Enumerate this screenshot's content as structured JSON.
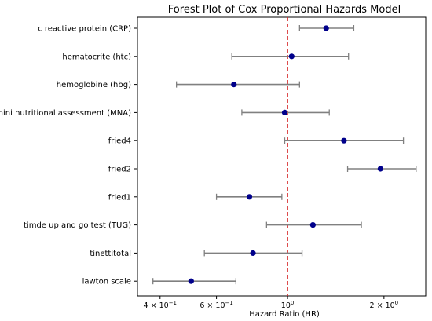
{
  "chart_data": {
    "type": "forest",
    "title": "Forest Plot of Cox Proportional Hazards Model",
    "xlabel": "Hazard Ratio (HR)",
    "ylabel": "",
    "x_scale": "log",
    "xlim": [
      0.34,
      2.7
    ],
    "x_ticks": [
      {
        "value": 0.4,
        "label_base": "4 × 10",
        "label_exp": "−1"
      },
      {
        "value": 0.6,
        "label_base": "6 × 10",
        "label_exp": "−1"
      },
      {
        "value": 1.0,
        "label_base": "10",
        "label_exp": "0"
      },
      {
        "value": 2.0,
        "label_base": "2 × 10",
        "label_exp": "0"
      }
    ],
    "reference_line": {
      "x": 1.0,
      "color": "#d62728",
      "style": "dashed"
    },
    "grid": false,
    "point_color": "#00008b",
    "ci_color": "#808080",
    "rows": [
      {
        "label": "c reactive protein (CRP)",
        "hr": 1.32,
        "ci_low": 1.09,
        "ci_high": 1.61
      },
      {
        "label": "hematocrite (htc)",
        "hr": 1.03,
        "ci_low": 0.67,
        "ci_high": 1.55
      },
      {
        "label": "hemoglobine (hbg)",
        "hr": 0.68,
        "ci_low": 0.45,
        "ci_high": 1.09
      },
      {
        "label": "mini nutritional assessment (MNA)",
        "hr": 0.98,
        "ci_low": 0.72,
        "ci_high": 1.35
      },
      {
        "label": "fried4",
        "hr": 1.5,
        "ci_low": 0.98,
        "ci_high": 2.3
      },
      {
        "label": "fried2",
        "hr": 1.95,
        "ci_low": 1.54,
        "ci_high": 2.52
      },
      {
        "label": "fried1",
        "hr": 0.76,
        "ci_low": 0.6,
        "ci_high": 0.96
      },
      {
        "label": "timde up and go test (TUG)",
        "hr": 1.2,
        "ci_low": 0.86,
        "ci_high": 1.7
      },
      {
        "label": "tinettitotal",
        "hr": 0.78,
        "ci_low": 0.55,
        "ci_high": 1.11
      },
      {
        "label": "lawton scale",
        "hr": 0.5,
        "ci_low": 0.38,
        "ci_high": 0.69
      }
    ]
  }
}
